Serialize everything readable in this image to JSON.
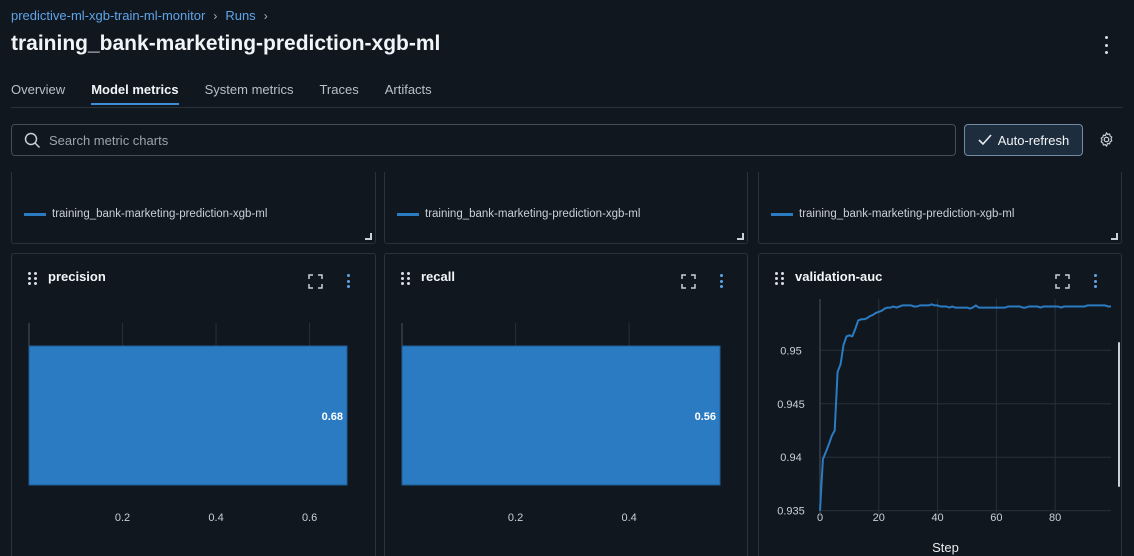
{
  "breadcrumb": {
    "experiment": "predictive-ml-xgb-train-ml-monitor",
    "section": "Runs"
  },
  "page_title": "training_bank-marketing-prediction-xgb-ml",
  "tabs": [
    {
      "label": "Overview",
      "active": false
    },
    {
      "label": "Model metrics",
      "active": true
    },
    {
      "label": "System metrics",
      "active": false
    },
    {
      "label": "Traces",
      "active": false
    },
    {
      "label": "Artifacts",
      "active": false
    }
  ],
  "search": {
    "placeholder": "Search metric charts",
    "value": ""
  },
  "toolbar": {
    "auto_refresh_label": "Auto-refresh",
    "auto_refresh_enabled": true
  },
  "colors": {
    "accent": "#2b7bc2",
    "background": "#11171f",
    "link": "#5ea4e8"
  },
  "legend_panels": [
    {
      "legend_label": "training_bank-marketing-prediction-xgb-ml"
    },
    {
      "legend_label": "training_bank-marketing-prediction-xgb-ml"
    },
    {
      "legend_label": "training_bank-marketing-prediction-xgb-ml"
    }
  ],
  "charts": [
    {
      "title": "precision"
    },
    {
      "title": "recall"
    },
    {
      "title": "validation-auc"
    }
  ],
  "chart_data": [
    {
      "type": "bar",
      "title": "precision",
      "orientation": "horizontal",
      "categories": [
        "training_bank-marketing-prediction-xgb-ml"
      ],
      "values": [
        0.68
      ],
      "value_labels": [
        "0.68"
      ],
      "xticks": [
        "0.2",
        "0.4",
        "0.6"
      ],
      "xlim": [
        0,
        0.68
      ],
      "grid": true
    },
    {
      "type": "bar",
      "title": "recall",
      "orientation": "horizontal",
      "categories": [
        "training_bank-marketing-prediction-xgb-ml"
      ],
      "values": [
        0.56
      ],
      "value_labels": [
        "0.56"
      ],
      "xticks": [
        "0.2",
        "0.4"
      ],
      "xlim": [
        0,
        0.56
      ],
      "grid": true
    },
    {
      "type": "line",
      "title": "validation-auc",
      "xlabel": "Step",
      "ylabel": "",
      "xticks": [
        "0",
        "20",
        "40",
        "60",
        "80"
      ],
      "yticks": [
        "0.935",
        "0.94",
        "0.945",
        "0.95"
      ],
      "xlim": [
        0,
        99
      ],
      "ylim": [
        0.9345,
        0.9548
      ],
      "grid": true,
      "series": [
        {
          "x": [
            0,
            1,
            2,
            3,
            4,
            5,
            6,
            7,
            8,
            9,
            10,
            11,
            12,
            13,
            14,
            15,
            16,
            17,
            18,
            19,
            20,
            21,
            22,
            23,
            24,
            25,
            26,
            27,
            28,
            29,
            30,
            31,
            32,
            33,
            34,
            35,
            36,
            37,
            38,
            39,
            40,
            41,
            42,
            43,
            44,
            45,
            46,
            47,
            48,
            49,
            50,
            51,
            52,
            53,
            54,
            55,
            56,
            57,
            58,
            59,
            60,
            61,
            62,
            63,
            64,
            65,
            66,
            67,
            68,
            69,
            70,
            71,
            72,
            73,
            74,
            75,
            76,
            77,
            78,
            79,
            80,
            81,
            82,
            83,
            84,
            85,
            86,
            87,
            88,
            89,
            90,
            91,
            92,
            93,
            94,
            95,
            96,
            97,
            98,
            99
          ],
          "y": [
            0.935,
            0.9398,
            0.9405,
            0.9412,
            0.942,
            0.9425,
            0.948,
            0.9487,
            0.9505,
            0.9513,
            0.9514,
            0.9513,
            0.952,
            0.9528,
            0.9529,
            0.9529,
            0.953,
            0.9532,
            0.9533,
            0.9535,
            0.9536,
            0.9537,
            0.9539,
            0.954,
            0.954,
            0.9541,
            0.954,
            0.9541,
            0.9542,
            0.9542,
            0.9542,
            0.9542,
            0.9541,
            0.9541,
            0.9542,
            0.9542,
            0.9542,
            0.9542,
            0.9543,
            0.9542,
            0.9542,
            0.9541,
            0.9541,
            0.9541,
            0.954,
            0.9541,
            0.954,
            0.954,
            0.954,
            0.954,
            0.954,
            0.9539,
            0.954,
            0.9542,
            0.954,
            0.954,
            0.954,
            0.954,
            0.954,
            0.954,
            0.954,
            0.954,
            0.954,
            0.954,
            0.9541,
            0.9541,
            0.9541,
            0.9541,
            0.9541,
            0.954,
            0.954,
            0.9541,
            0.9541,
            0.9541,
            0.9541,
            0.954,
            0.9541,
            0.9541,
            0.9541,
            0.9541,
            0.9541,
            0.9541,
            0.954,
            0.9541,
            0.9541,
            0.9541,
            0.9541,
            0.9541,
            0.9541,
            0.9541,
            0.9541,
            0.9542,
            0.9542,
            0.9542,
            0.9542,
            0.9542,
            0.9542,
            0.9542,
            0.9541,
            0.9541
          ]
        }
      ]
    }
  ]
}
